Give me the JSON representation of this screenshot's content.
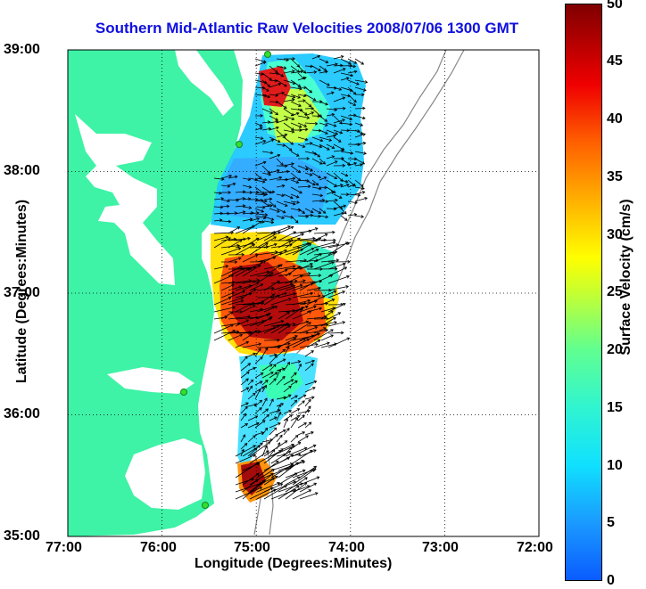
{
  "title": "Southern Mid-Atlantic Raw Velocities 2008/07/06 1300 GMT",
  "x_axis": {
    "label": "Longitude (Degrees:Minutes)",
    "ticks": [
      "77:00",
      "76:00",
      "75:00",
      "74:00",
      "73:00",
      "72:00"
    ],
    "range": [
      -77,
      -72
    ]
  },
  "y_axis": {
    "label": "Latitude (Degrees:Minutes)",
    "ticks": [
      "39:00",
      "38:00",
      "37:00",
      "36:00",
      "35:00"
    ],
    "range": [
      35,
      39
    ]
  },
  "colorbar": {
    "label": "Surface Velocity (cm/s)",
    "ticks": [
      "50",
      "45",
      "40",
      "35",
      "30",
      "25",
      "20",
      "15",
      "10",
      "5",
      "0"
    ],
    "range": [
      0,
      50
    ]
  },
  "colors": {
    "land": "#3ef2a6",
    "title": "#1010e0"
  },
  "grid": "dotted",
  "station_markers": [
    {
      "lon": -74.88,
      "lat": 38.96
    },
    {
      "lon": -75.1,
      "lat": 38.2
    },
    {
      "lon": -75.57,
      "lat": 36.2
    },
    {
      "lon": -75.52,
      "lat": 35.25
    }
  ]
}
